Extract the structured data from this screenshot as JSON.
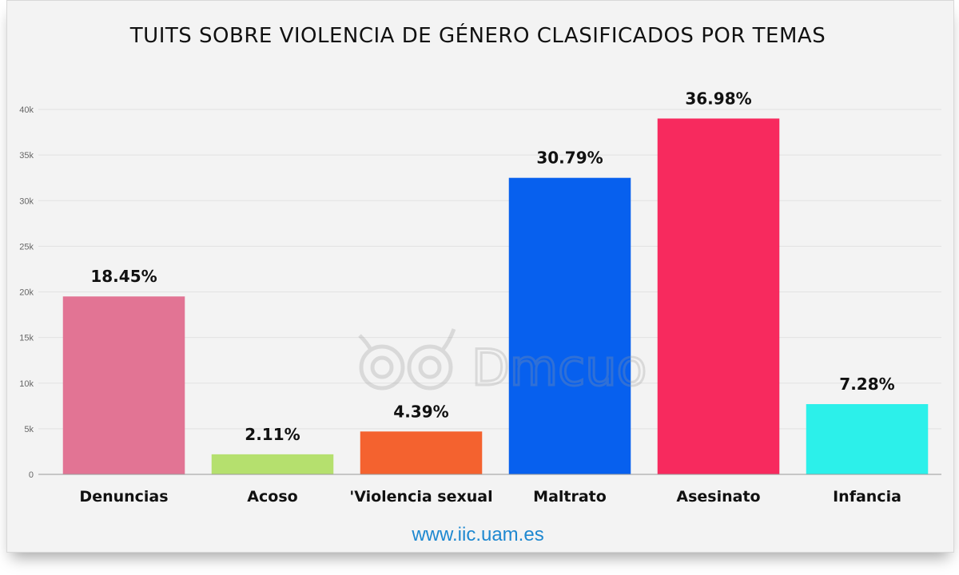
{
  "chart_data": {
    "type": "bar",
    "title": "TUITS SOBRE VIOLENCIA DE GÉNERO CLASIFICADOS POR TEMAS",
    "xlabel": "",
    "ylabel": "",
    "categories": [
      "Denuncias",
      "Acoso",
      "'Violencia sexual",
      "Maltrato",
      "Asesinato",
      "Infancia"
    ],
    "values": [
      19500,
      2200,
      4700,
      32500,
      39000,
      7700
    ],
    "data_labels": [
      "18.45%",
      "2.11%",
      "4.39%",
      "30.79%",
      "36.98%",
      "7.28%"
    ],
    "colors": [
      "#e27494",
      "#b5e06e",
      "#f4622f",
      "#0760ee",
      "#f72a5e",
      "#2cf0ea"
    ],
    "ylim": [
      0,
      40000
    ],
    "yticks": [
      0,
      5000,
      10000,
      15000,
      20000,
      25000,
      30000,
      35000,
      40000
    ],
    "ytick_labels": [
      "0",
      "5k",
      "10k",
      "15k",
      "20k",
      "25k",
      "30k",
      "35k",
      "40k"
    ],
    "grid": true,
    "legend": "none"
  },
  "source_text": "www.iic.uam.es",
  "watermark_text": "Dmcuo"
}
